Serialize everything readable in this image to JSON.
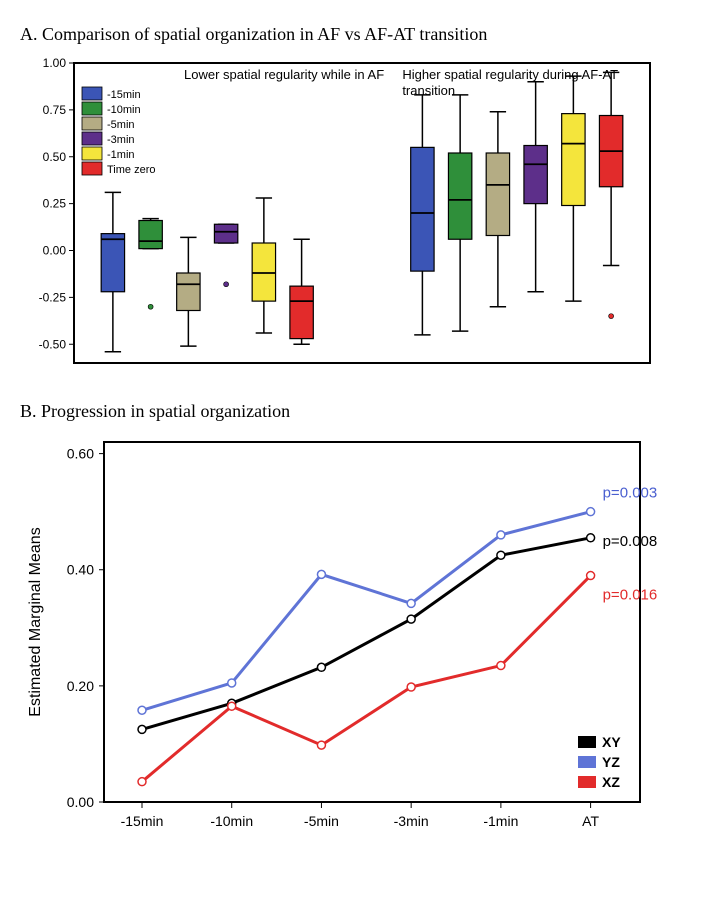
{
  "panelA": {
    "title": "A. Comparison of spatial organization in AF vs AF-AT transition",
    "annotation_left": "Lower spatial regularity while in AF",
    "annotation_right": "Higher spatial regularity during AF-AT transition",
    "ylim": [
      -0.6,
      1.0
    ],
    "yticks": [
      -0.5,
      -0.25,
      0.0,
      0.25,
      0.5,
      0.75,
      1.0
    ],
    "ytick_labels": [
      "-0.50",
      "-0.25",
      "0.00",
      "0.25",
      "0.50",
      "0.75",
      "1.00"
    ],
    "legend": [
      {
        "label": "-15min",
        "color": "#3b55b6"
      },
      {
        "label": "-10min",
        "color": "#2f8f3a"
      },
      {
        "label": "-5min",
        "color": "#b4ac84"
      },
      {
        "label": "-3min",
        "color": "#5d2f8a"
      },
      {
        "label": "-1min",
        "color": "#f4e53c"
      },
      {
        "label": "Time zero",
        "color": "#e22b2b"
      }
    ],
    "groups": [
      {
        "boxes": [
          {
            "color": "#3b55b6",
            "median": 0.06,
            "q1": -0.22,
            "q3": 0.09,
            "wlo": -0.54,
            "whi": 0.31,
            "outliers": []
          },
          {
            "color": "#2f8f3a",
            "median": 0.05,
            "q1": 0.01,
            "q3": 0.16,
            "wlo": 0.01,
            "whi": 0.17,
            "outliers": [
              -0.3
            ]
          },
          {
            "color": "#b4ac84",
            "median": -0.18,
            "q1": -0.32,
            "q3": -0.12,
            "wlo": -0.51,
            "whi": 0.07,
            "outliers": []
          },
          {
            "color": "#5d2f8a",
            "median": 0.1,
            "q1": 0.04,
            "q3": 0.14,
            "wlo": 0.04,
            "whi": 0.14,
            "outliers": [
              -0.18
            ]
          },
          {
            "color": "#f4e53c",
            "median": -0.12,
            "q1": -0.27,
            "q3": 0.04,
            "wlo": -0.44,
            "whi": 0.28,
            "outliers": []
          },
          {
            "color": "#e22b2b",
            "median": -0.27,
            "q1": -0.47,
            "q3": -0.19,
            "wlo": -0.5,
            "whi": 0.06,
            "outliers": []
          }
        ]
      },
      {
        "boxes": [
          {
            "color": "#3b55b6",
            "median": 0.2,
            "q1": -0.11,
            "q3": 0.55,
            "wlo": -0.45,
            "whi": 0.83,
            "outliers": []
          },
          {
            "color": "#2f8f3a",
            "median": 0.27,
            "q1": 0.06,
            "q3": 0.52,
            "wlo": -0.43,
            "whi": 0.83,
            "outliers": []
          },
          {
            "color": "#b4ac84",
            "median": 0.35,
            "q1": 0.08,
            "q3": 0.52,
            "wlo": -0.3,
            "whi": 0.74,
            "outliers": []
          },
          {
            "color": "#5d2f8a",
            "median": 0.46,
            "q1": 0.25,
            "q3": 0.56,
            "wlo": -0.22,
            "whi": 0.9,
            "outliers": []
          },
          {
            "color": "#f4e53c",
            "median": 0.57,
            "q1": 0.24,
            "q3": 0.73,
            "wlo": -0.27,
            "whi": 0.93,
            "outliers": []
          },
          {
            "color": "#e22b2b",
            "median": 0.53,
            "q1": 0.34,
            "q3": 0.72,
            "wlo": -0.08,
            "whi": 0.95,
            "outliers": [
              -0.35
            ]
          }
        ]
      }
    ],
    "box_width": 0.62,
    "group_gap": 2.2,
    "background_color": "#ffffff",
    "border_color": "#000000",
    "title_fontsize": 18,
    "annotation_fontsize": 13,
    "tick_fontsize": 12
  },
  "panelB": {
    "title": "B. Progression in spatial organization",
    "ylabel": "Estimated Marginal Means",
    "ylim": [
      0.0,
      0.62
    ],
    "yticks": [
      0.0,
      0.2,
      0.4,
      0.6
    ],
    "ytick_labels": [
      "0.00",
      "0.20",
      "0.40",
      "0.60"
    ],
    "categories": [
      "-15min",
      "-10min",
      "-5min",
      "-3min",
      "-1min",
      "AT"
    ],
    "series": [
      {
        "name": "XY",
        "color": "#000000",
        "values": [
          0.125,
          0.17,
          0.232,
          0.315,
          0.425,
          0.455
        ],
        "p_label": "p=0.008",
        "p_color": "#000000"
      },
      {
        "name": "YZ",
        "color": "#5f74d6",
        "values": [
          0.158,
          0.205,
          0.392,
          0.342,
          0.46,
          0.5
        ],
        "p_label": "p=0.003",
        "p_color": "#4a5fd0"
      },
      {
        "name": "XZ",
        "color": "#e22b2b",
        "values": [
          0.035,
          0.165,
          0.098,
          0.198,
          0.235,
          0.39
        ],
        "p_label": "p=0.016",
        "p_color": "#e22b2b"
      }
    ],
    "legend_order": [
      "XY",
      "YZ",
      "XZ"
    ],
    "line_width": 3,
    "marker_radius": 4,
    "marker_fill": "#ffffff",
    "background_color": "#ffffff",
    "border_color": "#000000",
    "title_fontsize": 18,
    "label_fontsize": 16,
    "tick_fontsize": 14
  }
}
